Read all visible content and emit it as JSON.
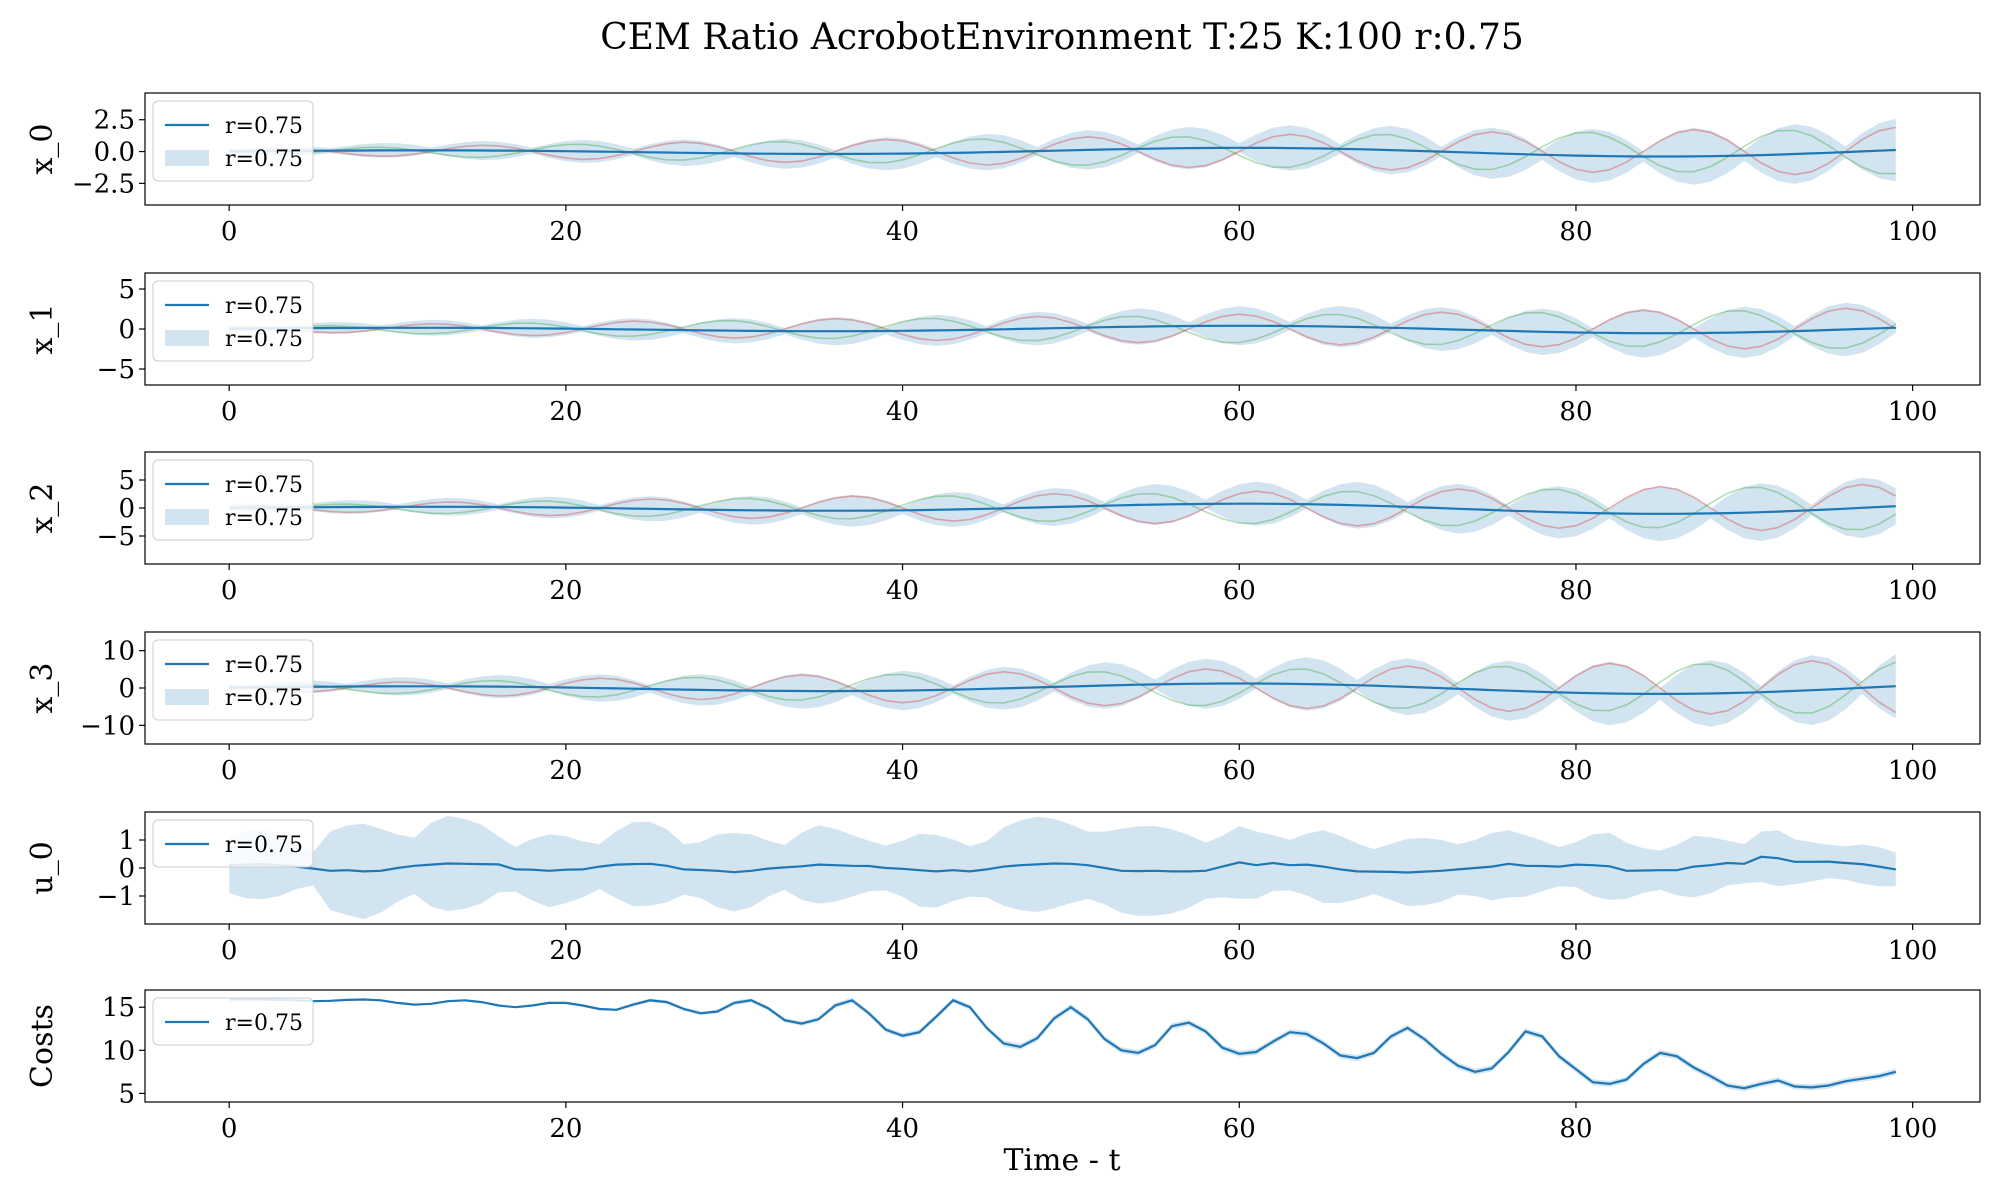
{
  "figure": {
    "title": "CEM Ratio AcrobotEnvironment T:25 K:100 r:0.75",
    "xlabel": "Time - t"
  },
  "colors": {
    "mean_line": "#1f77b4",
    "band_fill": "#1f77b4",
    "trajectory_a": "#d62728",
    "trajectory_b": "#2ca02c",
    "axes": "#000000"
  },
  "chart_data": [
    {
      "type": "line",
      "ylabel": "x_0",
      "xlim": [
        -5,
        104
      ],
      "ylim": [
        -4.2,
        4.6
      ],
      "xticks": [
        0,
        20,
        40,
        60,
        80,
        100
      ],
      "yticks": [
        2.5,
        0.0,
        -2.5
      ],
      "ytick_labels": [
        "2.5",
        "0.0",
        "−2.5"
      ],
      "legend": {
        "placement": "upper-left",
        "entries": [
          {
            "kind": "line",
            "label": "r=0.75"
          },
          {
            "kind": "band",
            "label": "r=0.75"
          }
        ]
      },
      "gen": {
        "amp": [
          0.1,
          2.0
        ],
        "period": 12,
        "phase": 0,
        "meanAmp": [
          0.05,
          0.45
        ],
        "meanPeriod": 50,
        "bandScale": 1.0,
        "bandExtra": 0.15
      }
    },
    {
      "type": "line",
      "ylabel": "x_1",
      "xlim": [
        -5,
        104
      ],
      "ylim": [
        -7,
        7
      ],
      "xticks": [
        0,
        20,
        40,
        60,
        80,
        100
      ],
      "yticks": [
        5,
        0,
        -5
      ],
      "ytick_labels": [
        "5",
        "0",
        "−5"
      ],
      "legend": {
        "placement": "upper-left",
        "entries": [
          {
            "kind": "line",
            "label": "r=0.75"
          },
          {
            "kind": "band",
            "label": "r=0.75"
          }
        ]
      },
      "gen": {
        "amp": [
          0.2,
          2.8
        ],
        "period": 12,
        "phase": 3,
        "meanAmp": [
          0.1,
          0.6
        ],
        "meanPeriod": 50,
        "bandScale": 1.0,
        "bandExtra": 0.2
      }
    },
    {
      "type": "line",
      "ylabel": "x_2",
      "xlim": [
        -5,
        104
      ],
      "ylim": [
        -10,
        10
      ],
      "xticks": [
        0,
        20,
        40,
        60,
        80,
        100
      ],
      "yticks": [
        5,
        0,
        -5
      ],
      "ytick_labels": [
        "5",
        "0",
        "−5"
      ],
      "legend": {
        "placement": "upper-left",
        "entries": [
          {
            "kind": "line",
            "label": "r=0.75"
          },
          {
            "kind": "band",
            "label": "r=0.75"
          }
        ]
      },
      "gen": {
        "amp": [
          0.3,
          4.5
        ],
        "period": 12,
        "phase": 2,
        "meanAmp": [
          0.1,
          1.2
        ],
        "meanPeriod": 50,
        "bandScale": 1.0,
        "bandExtra": 0.3
      }
    },
    {
      "type": "line",
      "ylabel": "x_3",
      "xlim": [
        -5,
        104
      ],
      "ylim": [
        -15,
        15
      ],
      "xticks": [
        0,
        20,
        40,
        60,
        80,
        100
      ],
      "yticks": [
        10,
        0,
        -10
      ],
      "ytick_labels": [
        "10",
        "0",
        "−10"
      ],
      "legend": {
        "placement": "upper-left",
        "entries": [
          {
            "kind": "line",
            "label": "r=0.75"
          },
          {
            "kind": "band",
            "label": "r=0.75"
          }
        ]
      },
      "gen": {
        "amp": [
          0.5,
          8.0
        ],
        "period": 12,
        "phase": 5,
        "meanAmp": [
          0.3,
          1.8
        ],
        "meanPeriod": 50,
        "bandScale": 1.0,
        "bandExtra": 0.5
      }
    },
    {
      "type": "line",
      "ylabel": "u_0",
      "xlim": [
        -5,
        104
      ],
      "ylim": [
        -2,
        2
      ],
      "xticks": [
        0,
        20,
        40,
        60,
        80,
        100
      ],
      "yticks": [
        1,
        0,
        -1
      ],
      "ytick_labels": [
        "1",
        "0",
        "−1"
      ],
      "legend": {
        "placement": "upper-left",
        "entries": [
          {
            "kind": "line",
            "label": "r=0.75"
          }
        ]
      },
      "series_mean": [
        0.1,
        0.12,
        0.14,
        0.1,
        0.05,
        -0.02,
        -0.1,
        -0.08,
        -0.12,
        -0.1,
        0.0,
        0.08,
        0.12,
        0.16,
        0.15,
        0.14,
        0.13,
        -0.05,
        -0.06,
        -0.1,
        -0.06,
        -0.05,
        0.05,
        0.12,
        0.14,
        0.15,
        0.08,
        -0.05,
        -0.07,
        -0.1,
        -0.15,
        -0.1,
        -0.02,
        0.02,
        0.06,
        0.12,
        0.1,
        0.08,
        0.07,
        0.0,
        -0.03,
        -0.08,
        -0.12,
        -0.08,
        -0.12,
        -0.05,
        0.05,
        0.1,
        0.13,
        0.16,
        0.15,
        0.1,
        0.0,
        -0.1,
        -0.11,
        -0.1,
        -0.12,
        -0.12,
        -0.1,
        0.05,
        0.2,
        0.1,
        0.18,
        0.1,
        0.12,
        0.05,
        -0.05,
        -0.12,
        -0.13,
        -0.14,
        -0.16,
        -0.13,
        -0.1,
        -0.05,
        0.0,
        0.05,
        0.15,
        0.08,
        0.07,
        0.05,
        0.12,
        0.1,
        0.06,
        -0.1,
        -0.09,
        -0.08,
        -0.08,
        0.05,
        0.1,
        0.18,
        0.15,
        0.4,
        0.35,
        0.22,
        0.22,
        0.23,
        0.18,
        0.14,
        0.05,
        -0.05
      ],
      "series_band_half": [
        1.0,
        1.2,
        1.25,
        1.1,
        0.8,
        0.6,
        1.4,
        1.6,
        1.7,
        1.5,
        1.2,
        1.0,
        1.5,
        1.7,
        1.6,
        1.4,
        1.0,
        0.8,
        1.1,
        1.3,
        1.2,
        1.0,
        0.8,
        1.2,
        1.5,
        1.5,
        1.3,
        0.9,
        1.0,
        1.3,
        1.4,
        1.3,
        1.0,
        0.8,
        1.2,
        1.4,
        1.3,
        1.1,
        0.9,
        0.8,
        1.0,
        1.3,
        1.3,
        1.1,
        0.9,
        1.0,
        1.4,
        1.6,
        1.7,
        1.6,
        1.4,
        1.2,
        1.3,
        1.5,
        1.6,
        1.6,
        1.5,
        1.3,
        1.0,
        1.1,
        1.3,
        1.2,
        1.0,
        0.9,
        1.1,
        1.3,
        1.2,
        1.0,
        0.8,
        1.0,
        1.2,
        1.2,
        1.1,
        0.9,
        1.0,
        1.2,
        1.2,
        1.1,
        0.9,
        0.7,
        0.8,
        1.1,
        1.2,
        1.0,
        0.8,
        0.7,
        0.9,
        1.1,
        1.0,
        0.8,
        0.7,
        0.9,
        1.0,
        0.8,
        0.7,
        0.6,
        0.6,
        0.7,
        0.7,
        0.6
      ]
    },
    {
      "type": "line",
      "ylabel": "Costs",
      "xlim": [
        -5,
        104
      ],
      "ylim": [
        4.0,
        17.0
      ],
      "xticks": [
        0,
        20,
        40,
        60,
        80,
        100
      ],
      "yticks": [
        15,
        10,
        5
      ],
      "ytick_labels": [
        "15",
        "10",
        "5"
      ],
      "legend": {
        "placement": "upper-left",
        "entries": [
          {
            "kind": "line",
            "label": "r=0.75"
          }
        ]
      },
      "series_mean": [
        15.9,
        15.9,
        15.9,
        15.85,
        15.8,
        15.7,
        15.75,
        15.85,
        15.9,
        15.8,
        15.5,
        15.3,
        15.4,
        15.7,
        15.8,
        15.6,
        15.2,
        15.0,
        15.2,
        15.5,
        15.5,
        15.2,
        14.8,
        14.7,
        15.3,
        15.8,
        15.6,
        14.8,
        14.3,
        14.5,
        15.5,
        15.8,
        14.9,
        13.5,
        13.1,
        13.6,
        15.2,
        15.8,
        14.3,
        12.4,
        11.7,
        12.1,
        13.9,
        15.8,
        15.0,
        12.6,
        10.8,
        10.4,
        11.4,
        13.7,
        15.0,
        13.6,
        11.3,
        10.0,
        9.7,
        10.6,
        12.8,
        13.2,
        12.2,
        10.3,
        9.6,
        9.8,
        11.0,
        12.1,
        11.9,
        10.8,
        9.4,
        9.1,
        9.7,
        11.6,
        12.6,
        11.3,
        9.6,
        8.2,
        7.5,
        7.9,
        9.8,
        12.2,
        11.6,
        9.3,
        7.8,
        6.3,
        6.1,
        6.6,
        8.4,
        9.7,
        9.3,
        8.0,
        7.0,
        5.9,
        5.6,
        6.1,
        6.5,
        5.8,
        5.7,
        5.9,
        6.4,
        6.7,
        7.0,
        7.5
      ],
      "series_band_half": [
        0.1,
        0.1,
        0.1,
        0.1,
        0.1,
        0.1,
        0.1,
        0.1,
        0.1,
        0.1,
        0.1,
        0.1,
        0.1,
        0.1,
        0.1,
        0.1,
        0.1,
        0.1,
        0.1,
        0.1,
        0.15,
        0.15,
        0.15,
        0.15,
        0.2,
        0.2,
        0.2,
        0.2,
        0.2,
        0.2,
        0.25,
        0.25,
        0.25,
        0.25,
        0.25,
        0.25,
        0.3,
        0.3,
        0.3,
        0.3,
        0.3,
        0.3,
        0.3,
        0.3,
        0.3,
        0.3,
        0.35,
        0.35,
        0.35,
        0.35,
        0.35,
        0.35,
        0.35,
        0.35,
        0.35,
        0.35,
        0.35,
        0.35,
        0.35,
        0.35,
        0.35,
        0.35,
        0.35,
        0.35,
        0.35,
        0.35,
        0.35,
        0.35,
        0.35,
        0.35,
        0.35,
        0.35,
        0.35,
        0.35,
        0.35,
        0.35,
        0.35,
        0.35,
        0.35,
        0.35,
        0.35,
        0.35,
        0.35,
        0.35,
        0.35,
        0.35,
        0.35,
        0.35,
        0.35,
        0.35,
        0.35,
        0.35,
        0.35,
        0.35,
        0.35,
        0.35,
        0.35,
        0.35,
        0.35,
        0.35
      ]
    }
  ]
}
